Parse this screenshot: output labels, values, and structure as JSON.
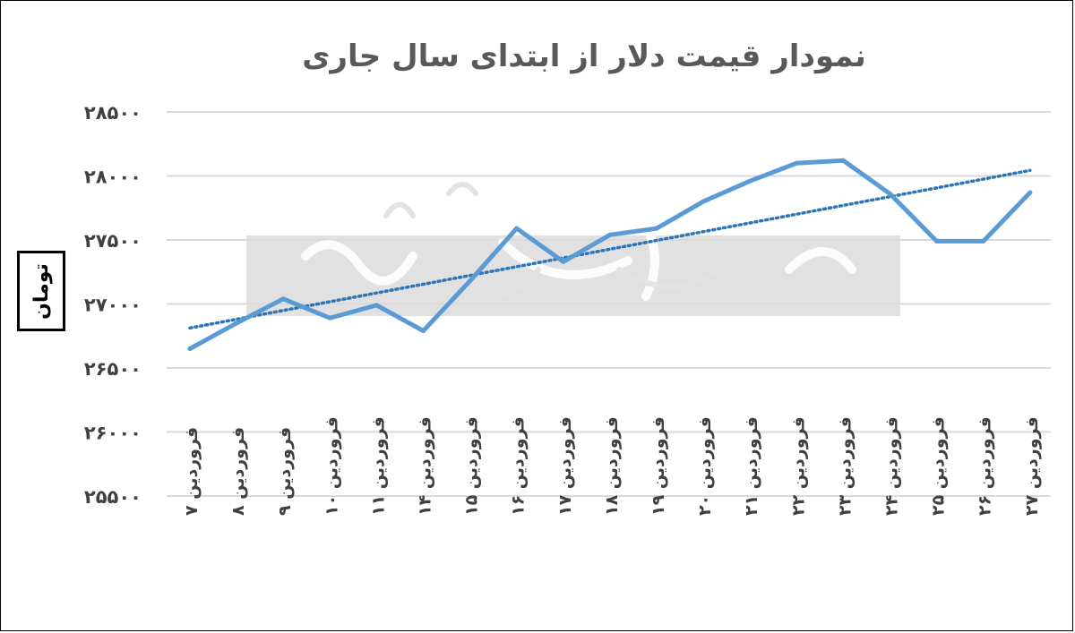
{
  "chart_data": {
    "type": "line",
    "title": "نمودار قیمت دلار از ابتدای سال جاری",
    "ylabel": "تومان",
    "xlabel": "",
    "ylim": [
      25500,
      28500
    ],
    "yticks": [
      25500,
      26000,
      26500,
      27000,
      27500,
      28000,
      28500
    ],
    "ytick_labels": [
      "۲۵۵۰۰",
      "۲۶۰۰۰",
      "۲۶۵۰۰",
      "۲۷۰۰۰",
      "۲۷۵۰۰",
      "۲۸۰۰۰",
      "۲۸۵۰۰"
    ],
    "categories": [
      "فروردین ۷",
      "فروردین ۸",
      "فروردین ۹",
      "فروردین ۱۰",
      "فروردین ۱۱",
      "فروردین ۱۴",
      "فروردین ۱۵",
      "فروردین ۱۶",
      "فروردین ۱۷",
      "فروردین ۱۸",
      "فروردین ۱۹",
      "فروردین ۲۰",
      "فروردین ۲۱",
      "فروردین ۲۲",
      "فروردین ۲۳",
      "فروردین ۲۴",
      "فروردین ۲۵",
      "فروردین ۲۶",
      "فروردین ۲۷"
    ],
    "series": [
      {
        "values": [
          26650,
          26850,
          27040,
          26890,
          26990,
          26790,
          27180,
          27590,
          27330,
          27540,
          27590,
          27800,
          27960,
          28100,
          28120,
          27860,
          27490,
          27490,
          27870
        ]
      }
    ],
    "trendline": {
      "type": "linear",
      "style": "dotted"
    },
    "grid": true,
    "legend": "none",
    "colors": {
      "line": "#5b9bd5",
      "trend": "#2e75b6",
      "grid": "#d9d9d9",
      "title": "#595959"
    }
  }
}
